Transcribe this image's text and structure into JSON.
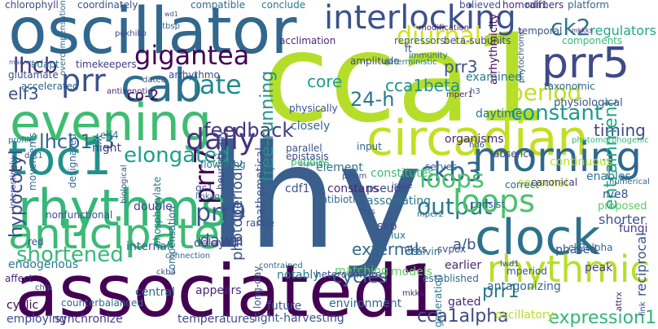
{
  "words": [
    {
      "text": "lhy",
      "color": "#3b5f8c"
    },
    {
      "text": "cca1",
      "color": "#b5de2b"
    },
    {
      "text": "associated1",
      "color": "#440154"
    },
    {
      "text": "oscillator",
      "color": "#31688e"
    },
    {
      "text": "circadian",
      "color": "#c2df23"
    },
    {
      "text": "evening",
      "color": "#3fbc73"
    },
    {
      "text": "rhythms",
      "color": "#35b779"
    },
    {
      "text": "toc1",
      "color": "#21918c"
    },
    {
      "text": "clock",
      "color": "#2c728e"
    },
    {
      "text": "morning",
      "color": "#31688e"
    },
    {
      "text": "anticipate",
      "color": "#3bbb75"
    },
    {
      "text": "cab",
      "color": "#2d708e"
    },
    {
      "text": "prr5",
      "color": "#3e4a89"
    },
    {
      "text": "rhythmic",
      "color": "#b8de29"
    },
    {
      "text": "interlocking",
      "color": "#3b528b"
    },
    {
      "text": "diurnal",
      "color": "#d2e21b"
    },
    {
      "text": "gigantea",
      "color": "#440154"
    },
    {
      "text": "ck2",
      "color": "#2a788e"
    },
    {
      "text": "prr",
      "color": "#3b528b"
    },
    {
      "text": "late",
      "color": "#238a8d"
    },
    {
      "text": "lhcb",
      "color": "#482878"
    },
    {
      "text": "prr7",
      "color": "#440154"
    },
    {
      "text": "period",
      "color": "#c0df25"
    },
    {
      "text": "timing",
      "color": "#3e4a89"
    },
    {
      "text": "daily",
      "color": "#46327e"
    },
    {
      "text": "lhcb1*3",
      "color": "#31688e"
    },
    {
      "text": "ckb3",
      "color": "#31688e"
    },
    {
      "text": "elf3",
      "color": "#3b528b"
    },
    {
      "text": "elongated",
      "color": "#1f9e89"
    },
    {
      "text": "constant",
      "color": "#1f9a8a"
    },
    {
      "text": "feedback",
      "color": "#443983"
    },
    {
      "text": "hypocotyl",
      "color": "#3e4a89"
    },
    {
      "text": "prr9",
      "color": "#3b528b"
    },
    {
      "text": "output",
      "color": "#2a788e"
    },
    {
      "text": "loops",
      "color": "#4ac16d"
    },
    {
      "text": "entrainment",
      "color": "#22a884"
    },
    {
      "text": "expression1",
      "color": "#31b57b"
    },
    {
      "text": "shortened",
      "color": "#38b977"
    },
    {
      "text": "cca1alpha",
      "color": "#3e4a89"
    },
    {
      "text": "cycles",
      "color": "#31688e"
    },
    {
      "text": "prr1",
      "color": "#2a788e"
    },
    {
      "text": "cca1beta",
      "color": "#21918c"
    },
    {
      "text": "24-h",
      "color": "#2a788e"
    },
    {
      "text": "core",
      "color": "#1f9e89"
    },
    {
      "text": "prr3",
      "color": "#3b528b"
    },
    {
      "text": "co-2",
      "color": "#440154"
    },
    {
      "text": "dawn",
      "color": "#3e4a89"
    },
    {
      "text": "external",
      "color": "#31688e"
    },
    {
      "text": "loops",
      "color": "#4ac16d"
    },
    {
      "text": "a/b",
      "color": "#3b528b"
    },
    {
      "text": "free-running",
      "color": "#21918c"
    },
    {
      "text": "photoperiodic",
      "color": "#3b528b"
    },
    {
      "text": "regulators",
      "color": "#22a884"
    },
    {
      "text": "components",
      "color": "#35b779"
    },
    {
      "text": "physiological",
      "color": "#3b528b"
    },
    {
      "text": "arrhythmicity",
      "color": "#440154"
    },
    {
      "text": "examined",
      "color": "#2a788e"
    },
    {
      "text": "daytime",
      "color": "#2c728e"
    },
    {
      "text": "continuous",
      "color": "#b5de2b"
    },
    {
      "text": "photomorphogenic",
      "color": "#35b779"
    },
    {
      "text": "shorter",
      "color": "#3b528b"
    },
    {
      "text": "enables",
      "color": "#2a788e"
    },
    {
      "text": "rve8",
      "color": "#3b528b"
    },
    {
      "text": "seasonal",
      "color": "#bddf26"
    },
    {
      "text": "proposed",
      "color": "#5ec962"
    },
    {
      "text": "organisms",
      "color": "#482878"
    },
    {
      "text": "constitutes",
      "color": "#3fbc73"
    },
    {
      "text": "element",
      "color": "#2c728e"
    },
    {
      "text": "cdf1",
      "color": "#3b528b"
    },
    {
      "text": "constans",
      "color": "#482878"
    },
    {
      "text": "pseudo",
      "color": "#3e4a89"
    },
    {
      "text": "associating",
      "color": "#2a788e"
    },
    {
      "text": "matching",
      "color": "#5ec962"
    },
    {
      "text": "earlier",
      "color": "#482878"
    },
    {
      "text": "models",
      "color": "#5ec962"
    },
    {
      "text": "established",
      "color": "#31688e"
    },
    {
      "text": "phased",
      "color": "#3b528b"
    },
    {
      "text": "peak",
      "color": "#443983"
    },
    {
      "text": "canonical",
      "color": "#46327e"
    },
    {
      "text": "correct",
      "color": "#31688e"
    },
    {
      "text": "svp",
      "color": "#3e4a89"
    },
    {
      "text": "lux",
      "color": "#2a788e"
    },
    {
      "text": "mkks",
      "color": "#3b528b"
    },
    {
      "text": "calvin",
      "color": "#31688e"
    },
    {
      "text": "svpox",
      "color": "#3b528b"
    },
    {
      "text": "ck2alpha",
      "color": "#31688e"
    },
    {
      "text": "fungi",
      "color": "#443983"
    },
    {
      "text": "reciprocal",
      "color": "#3b528b"
    },
    {
      "text": "antagonizing",
      "color": "#31688e"
    },
    {
      "text": "gated",
      "color": "#482878"
    },
    {
      "text": "consist",
      "color": "#31688e"
    },
    {
      "text": "generation",
      "color": "#2a788e"
    },
    {
      "text": "oscillatory",
      "color": "#b8de29"
    },
    {
      "text": "light-harvesting",
      "color": "#3b528b"
    },
    {
      "text": "environment",
      "color": "#31688e"
    },
    {
      "text": "future",
      "color": "#3b528b"
    },
    {
      "text": "temperatures",
      "color": "#3e4a89"
    },
    {
      "text": "synchronize",
      "color": "#443983"
    },
    {
      "text": "employing",
      "color": "#3e4a89"
    },
    {
      "text": "cyclic",
      "color": "#440154"
    },
    {
      "text": "counterbalanced",
      "color": "#31688e"
    },
    {
      "text": "heterodimers",
      "color": "#3b528b"
    },
    {
      "text": "notably",
      "color": "#2a788e"
    },
    {
      "text": "appears",
      "color": "#482878"
    },
    {
      "text": "central",
      "color": "#31688e"
    },
    {
      "text": "long-day",
      "color": "#3b528b"
    },
    {
      "text": "delayed",
      "color": "#3e4a89"
    },
    {
      "text": "endogenous",
      "color": "#2a788e"
    },
    {
      "text": "internal",
      "color": "#31688e"
    },
    {
      "text": "nonfunctional",
      "color": "#3b528b"
    },
    {
      "text": "phosphorylate",
      "color": "#2a788e"
    },
    {
      "text": "double",
      "color": "#3e4a89"
    },
    {
      "text": "accelerated",
      "color": "#31688e"
    },
    {
      "text": "glutamate",
      "color": "#3b528b"
    },
    {
      "text": "adapt",
      "color": "#2a788e"
    },
    {
      "text": "manner",
      "color": "#31688e"
    },
    {
      "text": "timekeepers",
      "color": "#443983"
    },
    {
      "text": "arrhythmo",
      "color": "#3e4a89"
    },
    {
      "text": "acclimation",
      "color": "#482878"
    },
    {
      "text": "amplitude",
      "color": "#3e4a89"
    },
    {
      "text": "repressors",
      "color": "#31688e"
    },
    {
      "text": "believed",
      "color": "#3b528b"
    },
    {
      "text": "homodimers",
      "color": "#482878"
    },
    {
      "text": "platform",
      "color": "#31688e"
    },
    {
      "text": "conclude",
      "color": "#2a788e"
    },
    {
      "text": "compatible",
      "color": "#31688e"
    },
    {
      "text": "coordinately",
      "color": "#3b528b"
    },
    {
      "text": "chlorophyll",
      "color": "#3e4a89"
    },
    {
      "text": "temporal",
      "color": "#3b528b"
    },
    {
      "text": "mkkks",
      "color": "#482878"
    },
    {
      "text": "beta-subunits",
      "color": "#3e4a89"
    },
    {
      "text": "immunity",
      "color": "#31688e"
    },
    {
      "text": "deterministic",
      "color": "#2a788e"
    },
    {
      "text": "physically",
      "color": "#3b528b"
    },
    {
      "text": "closely",
      "color": "#31688e"
    },
    {
      "text": "parallel",
      "color": "#3b528b"
    },
    {
      "text": "epistasis",
      "color": "#3e4a89"
    },
    {
      "text": "input",
      "color": "#31688e"
    },
    {
      "text": "night",
      "color": "#443983"
    },
    {
      "text": "elf4",
      "color": "#2a788e"
    },
    {
      "text": "biological",
      "color": "#3b528b"
    },
    {
      "text": "compensation",
      "color": "#31688e"
    },
    {
      "text": "heuristically",
      "color": "#3e4a89"
    },
    {
      "text": "relationship",
      "color": "#31688e"
    },
    {
      "text": "mathematical",
      "color": "#3b528b"
    },
    {
      "text": "petioles",
      "color": "#3fbc73"
    },
    {
      "text": "flowering",
      "color": "#2a788e"
    },
    {
      "text": "antibiotic",
      "color": "#31688e"
    },
    {
      "text": "trxs",
      "color": "#3b528b"
    },
    {
      "text": "ft",
      "color": "#3b528b"
    },
    {
      "text": "mper1",
      "color": "#482878"
    },
    {
      "text": "serves",
      "color": "#31688e"
    },
    {
      "text": "absence",
      "color": "#3e4a89"
    },
    {
      "text": "taxonomic",
      "color": "#31688e"
    },
    {
      "text": "phytochrome",
      "color": "#3b528b"
    },
    {
      "text": "modification",
      "color": "#482878"
    },
    {
      "text": "ralf1",
      "color": "#3b528b"
    },
    {
      "text": "atbsp",
      "color": "#31688e"
    },
    {
      "text": "pokhiko",
      "color": "#3e4a89"
    },
    {
      "text": "wd1",
      "color": "#3b528b"
    },
    {
      "text": "overcompensation",
      "color": "#31688e"
    },
    {
      "text": "antixenotic",
      "color": "#482878"
    },
    {
      "text": "date6",
      "color": "#3b528b"
    },
    {
      "text": "profile",
      "color": "#31688e"
    },
    {
      "text": "det1",
      "color": "#3b528b"
    },
    {
      "text": "designated",
      "color": "#31688e"
    },
    {
      "text": "interestingly",
      "color": "#3e4a89"
    },
    {
      "text": "movements",
      "color": "#31688e"
    },
    {
      "text": "red",
      "color": "#3b528b"
    },
    {
      "text": "affect",
      "color": "#482878"
    },
    {
      "text": "chip",
      "color": "#3b528b"
    },
    {
      "text": "issue",
      "color": "#3e4a89"
    },
    {
      "text": "mkks",
      "color": "#482878"
    },
    {
      "text": "mper2",
      "color": "#31688e"
    },
    {
      "text": "hd6",
      "color": "#3b528b"
    },
    {
      "text": "numerical",
      "color": "#31688e"
    },
    {
      "text": "link",
      "color": "#3e4a89"
    },
    {
      "text": "range",
      "color": "#3b528b"
    },
    {
      "text": "connection",
      "color": "#31688e"
    },
    {
      "text": "ckb4",
      "color": "#3b528b"
    },
    {
      "text": "contrained",
      "color": "#31688e"
    },
    {
      "text": "lwd1",
      "color": "#3b528b"
    },
    {
      "text": "mperiod",
      "color": "#3b528b"
    },
    {
      "text": "gc1",
      "color": "#3e4a89"
    },
    {
      "text": "linkage",
      "color": "#31688e"
    },
    {
      "text": "h3",
      "color": "#3b528b"
    },
    {
      "text": "ospsrr1",
      "color": "#31688e"
    },
    {
      "text": "pisum",
      "color": "#3b528b"
    },
    {
      "text": "attrx",
      "color": "#482878"
    }
  ]
}
